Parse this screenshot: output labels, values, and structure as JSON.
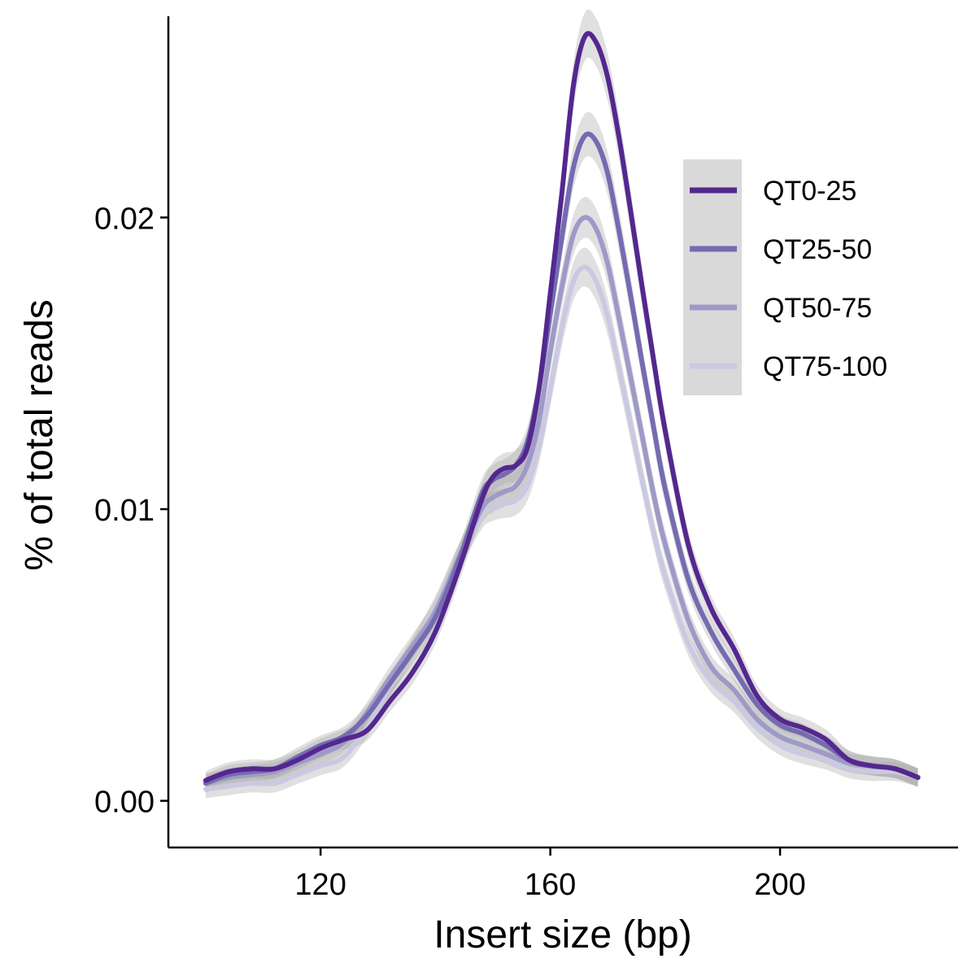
{
  "chart_data": {
    "type": "line",
    "xlabel": "Insert size (bp)",
    "ylabel": "% of total reads",
    "xlim": [
      93.5,
      231
    ],
    "ylim": [
      -0.0016,
      0.0269
    ],
    "xticks": [
      120,
      160,
      200
    ],
    "yticks": [
      0.0,
      0.01,
      0.02
    ],
    "ytick_labels": [
      "0.00",
      "0.01",
      "0.02"
    ],
    "grid": false,
    "legend_position": "top-right",
    "confidence_band_color": "#a6a6a6",
    "legend_background": "#d9d9d9",
    "series": [
      {
        "name": "QT0-25",
        "color": "#54278f",
        "x": [
          100,
          104,
          108,
          112,
          116,
          120,
          124,
          128,
          132,
          136,
          140,
          144,
          148,
          150,
          152,
          154,
          156,
          158,
          160,
          162,
          164,
          166,
          168,
          170,
          172,
          174,
          176,
          178,
          180,
          184,
          188,
          192,
          196,
          200,
          204,
          208,
          212,
          216,
          220,
          224
        ],
        "y": [
          0.0007,
          0.001,
          0.0011,
          0.0011,
          0.0014,
          0.0018,
          0.0021,
          0.0024,
          0.0034,
          0.0044,
          0.0058,
          0.0079,
          0.0103,
          0.0111,
          0.0114,
          0.0115,
          0.0121,
          0.0141,
          0.0174,
          0.0208,
          0.0245,
          0.0262,
          0.026,
          0.0248,
          0.0227,
          0.0202,
          0.0176,
          0.0151,
          0.0127,
          0.0088,
          0.0066,
          0.0052,
          0.0036,
          0.0028,
          0.0025,
          0.0021,
          0.0014,
          0.0012,
          0.0011,
          0.0008
        ]
      },
      {
        "name": "QT25-50",
        "color": "#756bb1",
        "x": [
          100,
          104,
          108,
          112,
          116,
          120,
          124,
          128,
          132,
          136,
          140,
          144,
          148,
          150,
          152,
          154,
          156,
          158,
          160,
          162,
          164,
          166,
          168,
          170,
          172,
          174,
          176,
          178,
          180,
          184,
          188,
          192,
          196,
          200,
          204,
          208,
          212,
          216,
          220,
          224
        ],
        "y": [
          0.0006,
          0.0009,
          0.001,
          0.0011,
          0.0015,
          0.0019,
          0.0022,
          0.0029,
          0.004,
          0.0051,
          0.0063,
          0.0082,
          0.0105,
          0.011,
          0.0112,
          0.0115,
          0.0123,
          0.0141,
          0.0167,
          0.0193,
          0.0217,
          0.0228,
          0.0226,
          0.0215,
          0.0195,
          0.0173,
          0.015,
          0.0128,
          0.0107,
          0.0076,
          0.0058,
          0.0045,
          0.0033,
          0.0026,
          0.0023,
          0.0019,
          0.0014,
          0.0012,
          0.0011,
          0.0008
        ]
      },
      {
        "name": "QT50-75",
        "color": "#9e9ac8",
        "x": [
          100,
          104,
          108,
          112,
          116,
          120,
          124,
          128,
          132,
          136,
          140,
          144,
          148,
          150,
          152,
          154,
          156,
          158,
          160,
          162,
          164,
          166,
          168,
          170,
          172,
          174,
          176,
          178,
          180,
          184,
          188,
          192,
          196,
          200,
          204,
          208,
          212,
          216,
          220,
          224
        ],
        "y": [
          0.0006,
          0.0008,
          0.0009,
          0.001,
          0.0013,
          0.0016,
          0.002,
          0.003,
          0.0042,
          0.0053,
          0.0065,
          0.0083,
          0.01,
          0.0104,
          0.0106,
          0.0108,
          0.0115,
          0.013,
          0.0154,
          0.0176,
          0.0194,
          0.02,
          0.0196,
          0.0184,
          0.0165,
          0.0145,
          0.0125,
          0.0105,
          0.0088,
          0.0062,
          0.0046,
          0.0038,
          0.0028,
          0.0022,
          0.0019,
          0.0016,
          0.0013,
          0.0012,
          0.0011,
          0.0008
        ]
      },
      {
        "name": "QT75-100",
        "color": "#cbc9e2",
        "x": [
          100,
          104,
          108,
          112,
          116,
          120,
          124,
          128,
          132,
          136,
          140,
          144,
          148,
          150,
          152,
          154,
          156,
          158,
          160,
          162,
          164,
          166,
          168,
          170,
          172,
          174,
          176,
          178,
          180,
          184,
          188,
          192,
          196,
          200,
          204,
          208,
          212,
          216,
          220,
          224
        ],
        "y": [
          0.0004,
          0.0005,
          0.0006,
          0.0006,
          0.0009,
          0.0012,
          0.0015,
          0.0025,
          0.0039,
          0.0052,
          0.0066,
          0.0083,
          0.0098,
          0.0101,
          0.0102,
          0.0103,
          0.0108,
          0.0121,
          0.0141,
          0.0162,
          0.0178,
          0.0183,
          0.0178,
          0.0166,
          0.0148,
          0.0129,
          0.011,
          0.0092,
          0.0077,
          0.0054,
          0.0041,
          0.0034,
          0.0025,
          0.0019,
          0.0016,
          0.0014,
          0.0011,
          0.001,
          0.001,
          0.0008
        ]
      }
    ]
  }
}
